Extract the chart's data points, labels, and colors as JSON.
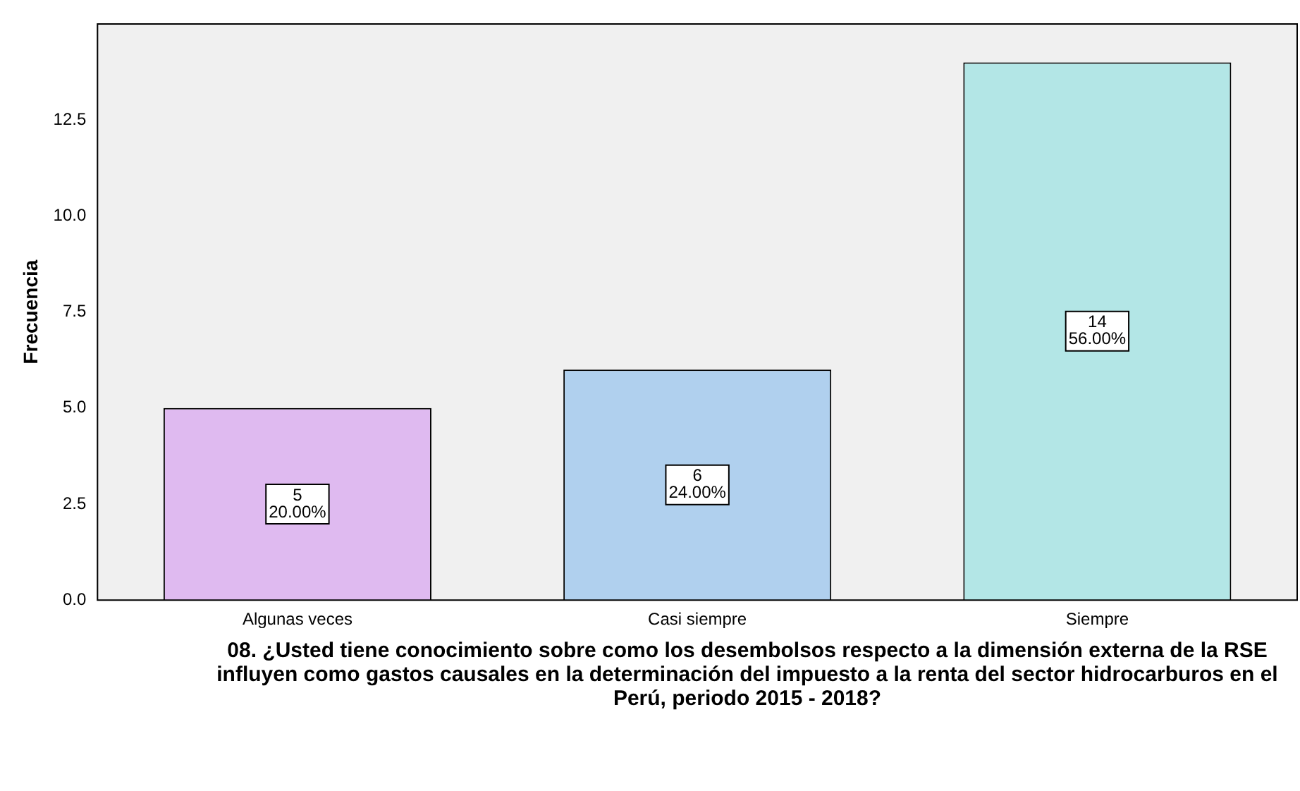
{
  "chart_data": {
    "type": "bar",
    "xlabel": "08. ¿Usted tiene conocimiento sobre como los desembolsos respecto a la dimensión externa de la RSE influyen como gastos causales en la determinación del impuesto a la renta del sector hidrocarburos en el Perú, periodo 2015 - 2018?",
    "ylabel": "Frecuencia",
    "categories": [
      "Algunas veces",
      "Casi siempre",
      "Siempre"
    ],
    "values": [
      5,
      6,
      14
    ],
    "colors": [
      "#dfbaf0",
      "#b0d0ee",
      "#b3e6e6"
    ],
    "value_labels": [
      "5\n20.00%",
      "6\n24.00%",
      "14\n56.00%"
    ],
    "ylim": [
      0,
      15
    ],
    "yticks": [
      {
        "value": 0,
        "label": "0.0"
      },
      {
        "value": 2.5,
        "label": "2.5"
      },
      {
        "value": 5,
        "label": "5.0"
      },
      {
        "value": 7.5,
        "label": "7.5"
      },
      {
        "value": 10,
        "label": "10.0"
      },
      {
        "value": 12.5,
        "label": "12.5"
      }
    ],
    "grid": false,
    "legend": false
  }
}
